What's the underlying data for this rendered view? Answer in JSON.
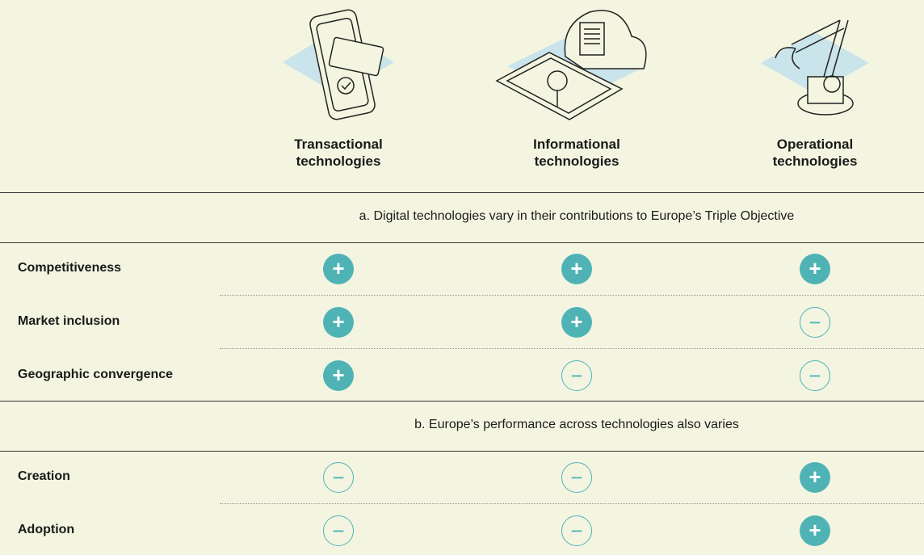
{
  "columns": [
    "Transactional technologies",
    "Informational technologies",
    "Operational technologies"
  ],
  "sections": [
    {
      "title": "a. Digital technologies vary in their contributions to Europe’s Triple Objective",
      "rows": [
        {
          "label": "Competitiveness",
          "values": [
            "+",
            "+",
            "+"
          ]
        },
        {
          "label": "Market inclusion",
          "values": [
            "+",
            "+",
            "−"
          ]
        },
        {
          "label": "Geographic convergence",
          "values": [
            "+",
            "−",
            "−"
          ]
        }
      ]
    },
    {
      "title": "b. Europe’s performance across technologies also varies",
      "rows": [
        {
          "label": "Creation",
          "values": [
            "−",
            "−",
            "+"
          ]
        },
        {
          "label": "Adoption",
          "values": [
            "−",
            "−",
            "+"
          ]
        }
      ]
    }
  ]
}
